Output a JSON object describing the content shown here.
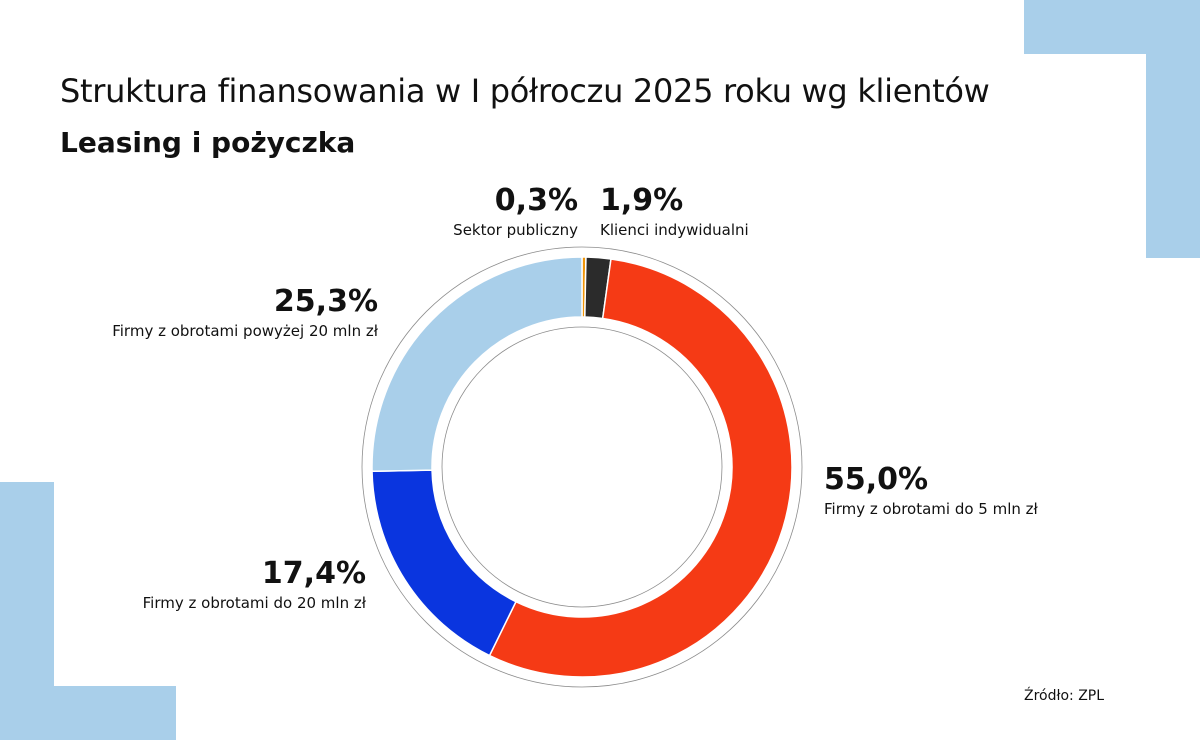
{
  "header": {
    "title": "Struktura finansowania w I półroczu 2025 roku wg klientów",
    "subtitle": "Leasing i pożyczka"
  },
  "chart_data": {
    "type": "pie",
    "variant": "donut",
    "title": "Struktura finansowania w I półroczu 2025 roku wg klientów",
    "subtitle": "Leasing i pożyczka",
    "categories": [
      "Sektor publiczny",
      "Klienci indywidualni",
      "Firmy z obrotami do 5 mln zł",
      "Firmy z obrotami do 20 mln zł",
      "Firmy z obrotami powyżej 20 mln zł"
    ],
    "values": [
      0.3,
      1.9,
      55.0,
      17.4,
      25.3
    ],
    "value_labels": [
      "0,3%",
      "1,9%",
      "55,0%",
      "17,4%",
      "25,3%"
    ],
    "colors": [
      "#f0960a",
      "#2b2b2b",
      "#f53a15",
      "#0a35df",
      "#a9cfea"
    ],
    "unit": "%"
  },
  "footer": {
    "source": "Źródło: ZPL"
  },
  "colors": {
    "accent_decoration": "#a9cfea"
  }
}
